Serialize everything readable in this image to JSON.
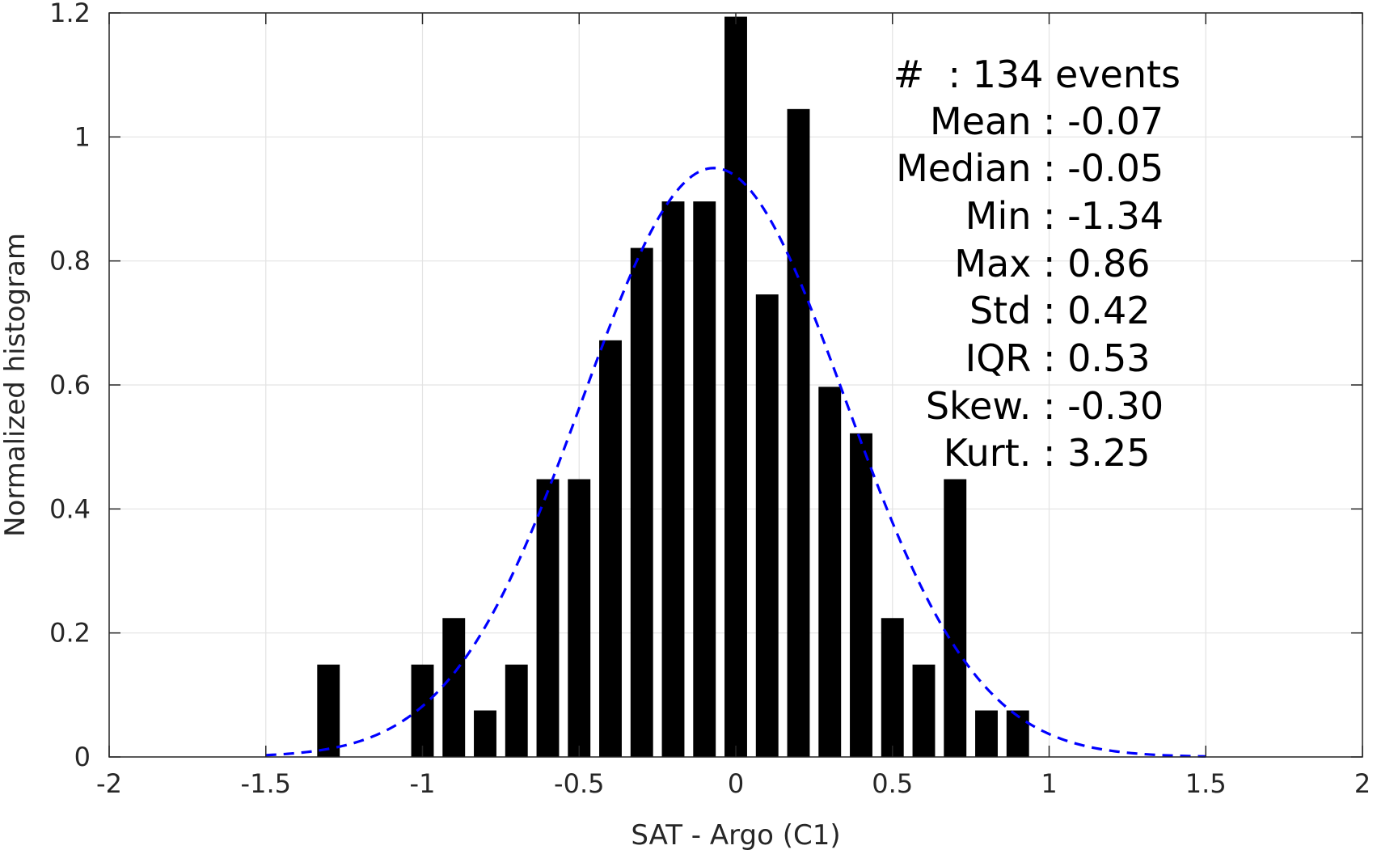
{
  "chart_data": {
    "type": "bar",
    "title": "",
    "xlabel": "SAT - Argo (C1)",
    "ylabel": "Normalized histogram",
    "xlim": [
      -2,
      2
    ],
    "ylim": [
      0,
      1.2
    ],
    "grid": true,
    "x_ticks": [
      -2,
      -1.5,
      -1,
      -0.5,
      0,
      0.5,
      1,
      1.5,
      2
    ],
    "y_ticks": [
      0,
      0.2,
      0.4,
      0.6,
      0.8,
      1,
      1.2
    ],
    "bin_width": 0.1,
    "bar_color": "#000000",
    "bars": [
      {
        "x": -1.3,
        "y": 0.149
      },
      {
        "x": -1.0,
        "y": 0.149
      },
      {
        "x": -0.9,
        "y": 0.224
      },
      {
        "x": -0.8,
        "y": 0.075
      },
      {
        "x": -0.7,
        "y": 0.149
      },
      {
        "x": -0.6,
        "y": 0.448
      },
      {
        "x": -0.5,
        "y": 0.448
      },
      {
        "x": -0.4,
        "y": 0.672
      },
      {
        "x": -0.3,
        "y": 0.821
      },
      {
        "x": -0.2,
        "y": 0.896
      },
      {
        "x": -0.1,
        "y": 0.896
      },
      {
        "x": 0.0,
        "y": 1.194
      },
      {
        "x": 0.1,
        "y": 0.746
      },
      {
        "x": 0.2,
        "y": 1.045
      },
      {
        "x": 0.3,
        "y": 0.597
      },
      {
        "x": 0.4,
        "y": 0.522
      },
      {
        "x": 0.5,
        "y": 0.224
      },
      {
        "x": 0.6,
        "y": 0.149
      },
      {
        "x": 0.7,
        "y": 0.448
      },
      {
        "x": 0.8,
        "y": 0.075
      },
      {
        "x": 0.9,
        "y": 0.075
      }
    ],
    "fit_curve": {
      "type": "normal",
      "mean": -0.07,
      "std": 0.42,
      "x_range": [
        -1.5,
        1.5
      ],
      "color": "#0000ff",
      "style": "dashed"
    },
    "annotations": [
      {
        "label": "#  : 134 events",
        "align": "end"
      },
      {
        "label": "Mean : -0.07"
      },
      {
        "label": "Median : -0.05"
      },
      {
        "label": "Min : -1.34"
      },
      {
        "label": "Max : 0.86"
      },
      {
        "label": "Std : 0.42"
      },
      {
        "label": "IQR : 0.53"
      },
      {
        "label": "Skew. : -0.30"
      },
      {
        "label": "Kurt. : 3.25"
      }
    ]
  }
}
